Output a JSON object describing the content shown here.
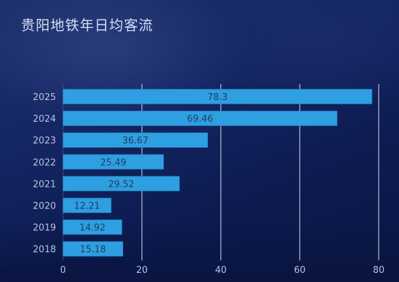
{
  "chart_data": {
    "type": "bar",
    "orientation": "horizontal",
    "title": "贵阳地铁年日均客流",
    "categories": [
      "2025",
      "2024",
      "2023",
      "2022",
      "2021",
      "2020",
      "2019",
      "2018"
    ],
    "values": [
      78.3,
      69.46,
      36.67,
      25.49,
      29.52,
      12.21,
      14.92,
      15.18
    ],
    "value_labels": [
      "78.3",
      "69.46",
      "36.67",
      "25.49",
      "29.52",
      "12.21",
      "14.92",
      "15.18"
    ],
    "xlim": [
      0,
      80
    ],
    "xticks": [
      "0",
      "20",
      "40",
      "60",
      "80"
    ],
    "xlabel": "",
    "ylabel": "",
    "grid": true,
    "legend": false,
    "colors": {
      "bar": "#2e9fe0",
      "bar_edge": "#1d7fc0",
      "grid": "#d8dcef",
      "tick_text": "#b9c3e3",
      "value_text": "#1f3f66"
    }
  }
}
